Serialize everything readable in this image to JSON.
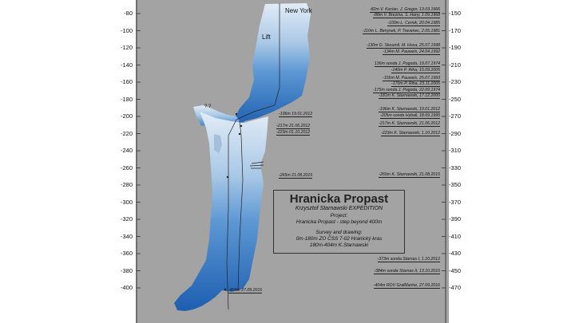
{
  "diagram": {
    "title": "Hranicka Propast",
    "expedition": "Krzysztof Starnawski EXPEDITION",
    "project_heading": "Project:",
    "project_text": "Hranicka Propast - step beyond 400m",
    "survey_heading": "Survey and drawing:",
    "survey_line1": "0m-180m ZO ČSS 7-02 Hranický kras",
    "survey_line2": "180m-404m K.Starnawski",
    "labels": {
      "new_york": "New York",
      "lift": "Lift",
      "question_marks": "? ?"
    },
    "left_axis_ticks": [
      "-80",
      "-100",
      "-120",
      "-140",
      "-160",
      "-180",
      "-200",
      "-220",
      "-240",
      "-260",
      "-280",
      "-300",
      "-320",
      "-340",
      "-360",
      "-380",
      "-400"
    ],
    "right_axis_ticks": [
      "-150",
      "-170",
      "-190",
      "-210",
      "-230",
      "-250",
      "-270",
      "-290",
      "-310",
      "-330",
      "-350",
      "-370",
      "-390",
      "-410",
      "-430",
      "-450",
      "-470"
    ],
    "right_notes": [
      "-82m V. Kocian, J. Gregor, 13.03.1966",
      "-88m V. Brezina, S. Hany, 1.09.1968",
      "-100m L. Cernik, 20.04.1985",
      "-110m L. Benysek, P. Travenec, 2.05.1981",
      "-130m D. Skoumil, M. Hosa, 25.07.1998",
      "-134m M. Pauwels, 24.04.1992",
      "136m sonda J. Pogoda, 19.07.1974",
      "-140m P. Riha, 15.09.2005",
      "-155m M. Pauwels, 25.07.1993",
      "-170m P. Riha, 23.11.2005",
      "-175m sonda J. Pogoda, 22.09.1974",
      "-181m K. Starnawski, 17.12.2000",
      "-196m K. Starnawski, 19.01.2012",
      "-205m sonda Hyball, 18.09.1995",
      "-217m K. Starnawski, 21.06.2012",
      "-223m K. Starnawski, 1.10.2012",
      "-265m K. Starnawski, 21.08.2015",
      "-373m sonda Starnas I, 1.10.2012",
      "-384m sonda Starnas II, 13.10.2015",
      "-404m ROV GralMarine, 27.09.2016"
    ],
    "inner_notes": [
      "-196m 19.01.2012",
      "-217m 21.06.2012",
      "-223m 01.10.2012",
      "-265m 21.08.2015",
      "-404m 27.09.2016"
    ]
  },
  "colors": {
    "panel": "#a3a3a3",
    "cave_top": "#dbe7f3",
    "cave_bottom": "#1f62b3",
    "line": "#222222"
  }
}
